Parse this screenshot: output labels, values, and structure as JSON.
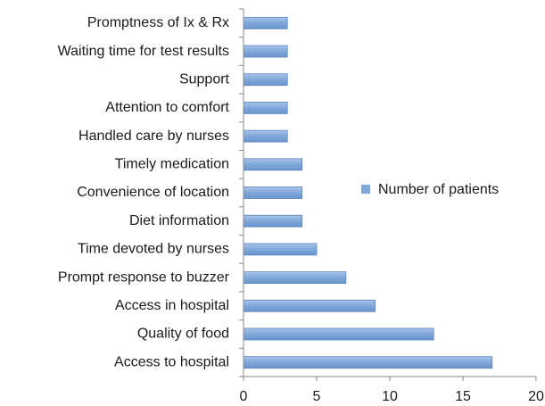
{
  "chart_data": {
    "type": "bar",
    "orientation": "horizontal",
    "categories": [
      "Promptness of Ix & Rx",
      "Waiting time for test results",
      "Support",
      "Attention to comfort",
      "Handled care by nurses",
      "Timely medication",
      "Convenience of location",
      "Diet information",
      "Time devoted by nurses",
      "Prompt response to buzzer",
      "Access in hospital",
      "Quality of food",
      "Access to hospital"
    ],
    "series": [
      {
        "name": "Number of patients",
        "color": "#7fa7d9",
        "values": [
          3,
          3,
          3,
          3,
          3,
          4,
          4,
          4,
          5,
          7,
          9,
          13,
          17
        ]
      }
    ],
    "xlim": [
      0,
      20
    ],
    "xticks": [
      0,
      5,
      10,
      15,
      20
    ],
    "grid": false,
    "legend": "right"
  }
}
